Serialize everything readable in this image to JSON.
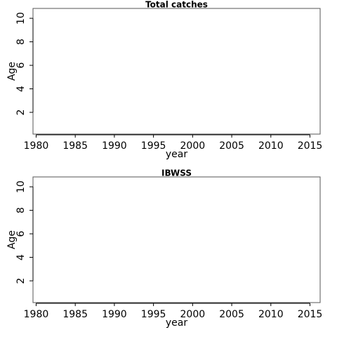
{
  "chart_data": [
    {
      "type": "scatter",
      "title": "Total catches",
      "x_label": "year",
      "y_label": "Age",
      "xlim": [
        1979.6,
        2016.3
      ],
      "xticks": [
        1980,
        1985,
        1990,
        1995,
        2000,
        2005,
        2010,
        2015
      ],
      "ylim": [
        0.15,
        10.84
      ],
      "yticks": [
        2,
        4,
        6,
        8,
        10
      ]
    },
    {
      "type": "scatter",
      "title": "IBWSS",
      "x_label": "year",
      "y_label": "Age",
      "xlim": [
        1979.6,
        2016.3
      ],
      "xticks": [
        1980,
        1985,
        1990,
        1995,
        2000,
        2005,
        2010,
        2015
      ],
      "ylim": [
        0.15,
        10.84
      ],
      "yticks": [
        2,
        4,
        6,
        8,
        10
      ]
    }
  ]
}
